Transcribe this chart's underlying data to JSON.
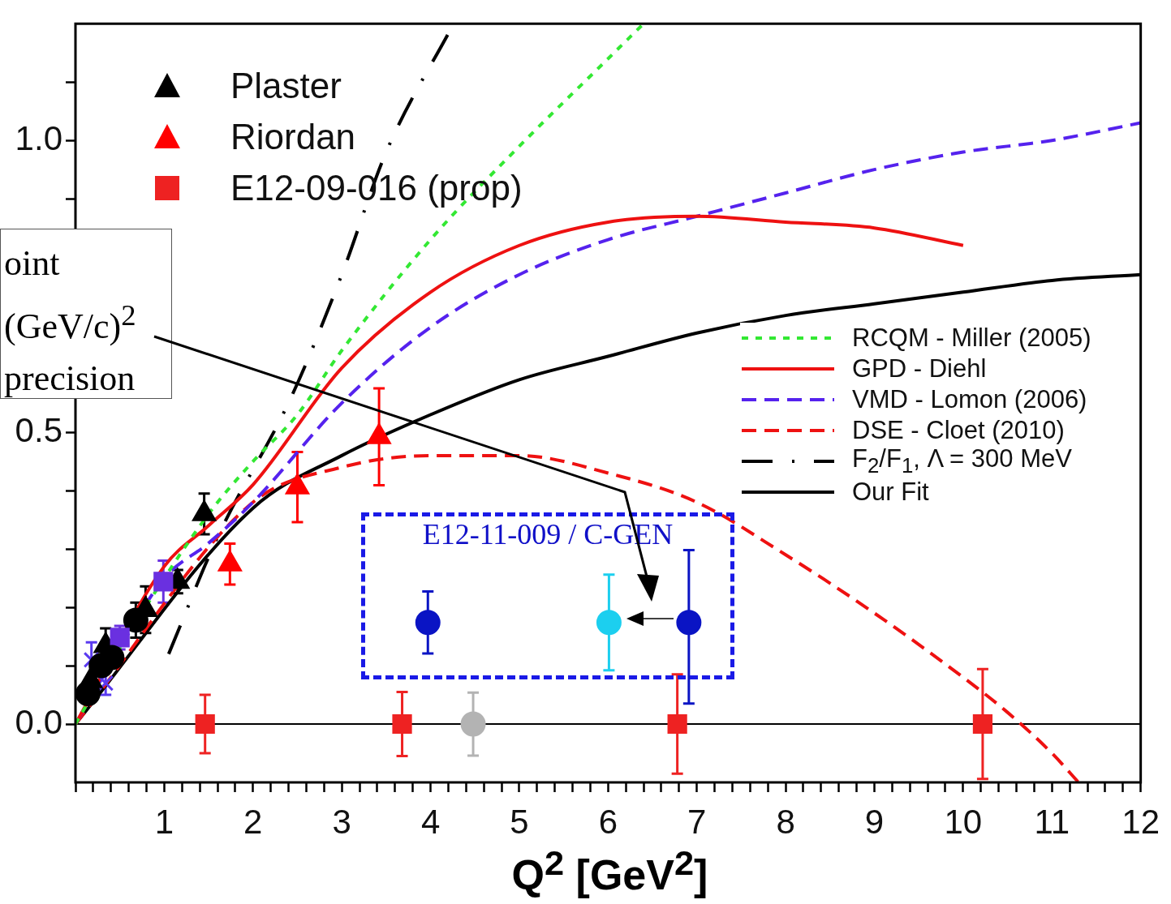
{
  "chart_data": {
    "type": "scatter",
    "xlabel": "Q$^{2}$  [GeV$^{2}$]",
    "xlim": [
      0,
      12
    ],
    "ylim": [
      -0.1,
      1.2
    ],
    "xticks": [
      {
        "value": 0,
        "label": null
      },
      {
        "value": 0.2,
        "label": null
      },
      {
        "value": 0.4,
        "label": null
      },
      {
        "value": 0.6,
        "label": null
      },
      {
        "value": 0.8,
        "label": null
      },
      1,
      {
        "value": 1.2,
        "label": null
      },
      {
        "value": 1.4,
        "label": null
      },
      {
        "value": 1.6,
        "label": null
      },
      {
        "value": 1.8,
        "label": null
      },
      2,
      {
        "value": 2.2,
        "label": null
      },
      {
        "value": 2.4,
        "label": null
      },
      {
        "value": 2.6,
        "label": null
      },
      {
        "value": 2.8,
        "label": null
      },
      3,
      {
        "value": 3.2,
        "label": null
      },
      {
        "value": 3.4,
        "label": null
      },
      {
        "value": 3.6,
        "label": null
      },
      {
        "value": 3.8,
        "label": null
      },
      4,
      {
        "value": 4.2,
        "label": null
      },
      {
        "value": 4.4,
        "label": null
      },
      {
        "value": 4.6,
        "label": null
      },
      {
        "value": 4.8,
        "label": null
      },
      5,
      {
        "value": 5.2,
        "label": null
      },
      {
        "value": 5.4,
        "label": null
      },
      {
        "value": 5.6,
        "label": null
      },
      {
        "value": 5.8,
        "label": null
      },
      6,
      {
        "value": 6.2,
        "label": null
      },
      {
        "value": 6.4,
        "label": null
      },
      {
        "value": 6.6,
        "label": null
      },
      {
        "value": 6.8,
        "label": null
      },
      7,
      {
        "value": 7.2,
        "label": null
      },
      {
        "value": 7.4,
        "label": null
      },
      {
        "value": 7.6,
        "label": null
      },
      {
        "value": 7.8,
        "label": null
      },
      8,
      {
        "value": 8.2,
        "label": null
      },
      {
        "value": 8.4,
        "label": null
      },
      {
        "value": 8.6,
        "label": null
      },
      {
        "value": 8.8,
        "label": null
      },
      9,
      {
        "value": 9.2,
        "label": null
      },
      {
        "value": 9.4,
        "label": null
      },
      {
        "value": 9.6,
        "label": null
      },
      {
        "value": 9.8,
        "label": null
      },
      10,
      {
        "value": 10.2,
        "label": null
      },
      {
        "value": 10.4,
        "label": null
      },
      {
        "value": 10.6,
        "label": null
      },
      {
        "value": 10.8,
        "label": null
      },
      11,
      {
        "value": 11.2,
        "label": null
      },
      {
        "value": 11.4,
        "label": null
      },
      {
        "value": 11.6,
        "label": null
      },
      {
        "value": 11.8,
        "label": null
      },
      12
    ],
    "yticks": [
      {
        "value": 0,
        "label": "0.0"
      },
      {
        "value": 0.1,
        "label": null
      },
      {
        "value": 0.2,
        "label": null
      },
      {
        "value": 0.3,
        "label": null
      },
      {
        "value": 0.4,
        "label": null
      },
      {
        "value": 0.5,
        "label": "0.5"
      },
      {
        "value": 0.6,
        "label": null
      },
      {
        "value": 0.7,
        "label": null
      },
      {
        "value": 0.8,
        "label": null
      },
      {
        "value": 0.9,
        "label": null
      },
      {
        "value": 1.0,
        "label": "1.0"
      },
      {
        "value": 1.1,
        "label": null
      }
    ],
    "grid": false,
    "legend": "top left",
    "ref_lines": [
      {
        "axis": "y",
        "value": 0,
        "color": "#000000"
      }
    ],
    "annotations": [
      "oint\n(GeV/c)$^{2}$\nprecision",
      "E12-11-009 / C-GEN"
    ],
    "series": [
      {
        "name": "RCQM - Miller (2005)",
        "type": "line",
        "line_style": "dotted",
        "color": "#33e833",
        "x": [
          0,
          0.5,
          1.5,
          2,
          2.5,
          3,
          4,
          5,
          6,
          6.4
        ],
        "values": [
          0,
          0.13,
          0.36,
          0.45,
          0.53,
          0.64,
          0.83,
          0.99,
          1.14,
          1.2
        ]
      },
      {
        "name": "GPD - Diehl",
        "type": "line",
        "line_style": "solid",
        "color": "#ee1111",
        "x": [
          0,
          1,
          1.5,
          2,
          3,
          4,
          5,
          6,
          7,
          8,
          9,
          10
        ],
        "values": [
          0,
          0.27,
          0.34,
          0.41,
          0.61,
          0.74,
          0.82,
          0.86,
          0.87,
          0.86,
          0.85,
          0.82
        ]
      },
      {
        "name": "VMD - Lomon (2006)",
        "type": "line",
        "line_style": "dashed",
        "color": "#5522ee",
        "x": [
          0,
          0.5,
          1,
          1.5,
          2,
          3,
          4,
          5,
          6,
          7,
          8,
          9,
          10,
          11,
          12
        ],
        "values": [
          0,
          0.13,
          0.25,
          0.31,
          0.38,
          0.55,
          0.68,
          0.77,
          0.83,
          0.87,
          0.91,
          0.95,
          0.98,
          1.0,
          1.03
        ]
      },
      {
        "name": "DSE - Cloet (2010)",
        "type": "line",
        "line_style": "dashed",
        "color": "#ee1111",
        "x": [
          0,
          2,
          3,
          4,
          5,
          6,
          7,
          8,
          9,
          10,
          10.5,
          11,
          11.3
        ],
        "values": [
          0,
          0.38,
          0.44,
          0.46,
          0.46,
          0.43,
          0.38,
          0.29,
          0.19,
          0.08,
          0.02,
          -0.05,
          -0.1
        ]
      },
      {
        "name": "F$_{2}$/F$_{1}$, Λ = 300 MeV",
        "type": "line",
        "line_style": "dashdot",
        "color": "#000000",
        "x": [
          1.05,
          1.6,
          2.43,
          3.0,
          3.5,
          4.26
        ],
        "values": [
          0.12,
          0.32,
          0.56,
          0.77,
          0.98,
          1.2
        ]
      },
      {
        "name": "Our Fit",
        "type": "line",
        "line_style": "solid",
        "color": "#000000",
        "x": [
          0,
          2,
          3,
          4,
          5,
          6,
          7,
          8,
          9,
          10,
          11,
          12
        ],
        "values": [
          0,
          0.37,
          0.46,
          0.53,
          0.59,
          0.63,
          0.67,
          0.7,
          0.72,
          0.74,
          0.76,
          0.77
        ]
      },
      {
        "type": "scatter",
        "marker": "circle",
        "color": "#000000",
        "x": [
          0.14,
          0.29,
          0.41
        ],
        "values": [
          0.052,
          0.1,
          0.114
        ]
      },
      {
        "type": "scatter",
        "marker": "triangle",
        "color": "#000000",
        "x": [
          0.17
        ],
        "values": [
          0.074
        ]
      },
      {
        "type": "scatter",
        "marker": "cross",
        "color": "#5a3af0",
        "x": [
          0.18,
          0.34
        ],
        "values": [
          0.11,
          0.07
        ],
        "errors": [
          0.03,
          0.02
        ]
      },
      {
        "type": "scatter",
        "marker": "square",
        "color": "#6a30e0",
        "x": [
          0.5,
          0.99
        ],
        "values": [
          0.148,
          0.244
        ],
        "errors": [
          0.02,
          0.036
        ]
      },
      {
        "type": "scatter",
        "marker": "circle",
        "color": "#000000",
        "x": [
          0.68
        ],
        "values": [
          0.178
        ],
        "errors": [
          0.03
        ]
      },
      {
        "name": "Plaster",
        "type": "scatter",
        "marker": "triangle",
        "color": "#000000",
        "x": [
          0.34,
          0.79,
          1.15,
          1.45
        ],
        "values": [
          0.134,
          0.196,
          0.244,
          0.36
        ],
        "errors": [
          0.03,
          0.04,
          0.02,
          0.035
        ]
      },
      {
        "name": "Riordan",
        "type": "scatter",
        "marker": "triangle",
        "color": "#ff0000",
        "x": [
          1.74,
          2.5,
          3.42
        ],
        "values": [
          0.274,
          0.406,
          0.492
        ],
        "errors": [
          0.035,
          0.06,
          0.083
        ]
      },
      {
        "name": "E12-09-016 (prop)",
        "type": "scatter",
        "marker": "square",
        "color": "#ee2222",
        "x": [
          1.46,
          3.68,
          6.78,
          10.22
        ],
        "values": [
          0,
          0,
          0,
          0
        ],
        "errors": [
          0.05,
          0.055,
          0.085,
          0.094
        ]
      },
      {
        "type": "scatter",
        "marker": "circle",
        "color": "#b3b3b3",
        "x": [
          4.48
        ],
        "values": [
          0
        ],
        "errors": [
          0.054
        ]
      },
      {
        "type": "scatter",
        "marker": "circle",
        "color": "#0a14c4",
        "x": [
          3.97,
          6.91
        ],
        "values": [
          0.174,
          0.174
        ],
        "errors": [
          0.053,
          [
            0.035,
            0.298
          ]
        ]
      },
      {
        "type": "scatter",
        "marker": "circle",
        "color": "#1ccfef",
        "x": [
          6.01
        ],
        "values": [
          0.174
        ],
        "errors": [
          0.082
        ]
      }
    ]
  }
}
